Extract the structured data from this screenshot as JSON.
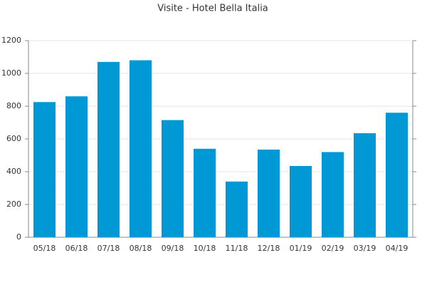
{
  "chart_data": {
    "type": "bar",
    "title": "Visite - Hotel Bella Italia",
    "categories": [
      "05/18",
      "06/18",
      "07/18",
      "08/18",
      "09/18",
      "10/18",
      "11/18",
      "12/18",
      "01/19",
      "02/19",
      "03/19",
      "04/19"
    ],
    "values": [
      825,
      860,
      1070,
      1080,
      715,
      540,
      340,
      535,
      435,
      520,
      635,
      760
    ],
    "color": "#0099d6",
    "ylim": [
      0,
      1200
    ],
    "yticks": [
      0,
      200,
      400,
      600,
      800,
      1000,
      1200
    ],
    "grid": true
  }
}
